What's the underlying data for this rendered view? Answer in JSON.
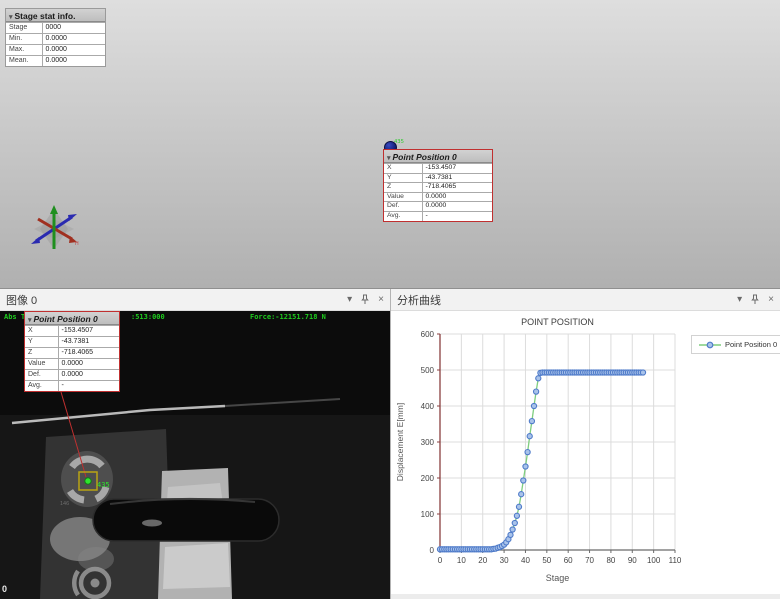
{
  "colors": {
    "annotation_border": "#c03030",
    "camera_text_green": "#1ecb1e",
    "line_green": "#7fce7f",
    "marker_blue_stroke": "#4f7bc9",
    "marker_blue_fill": "#a9c3ea",
    "axis_left_maroon": "#8a4040",
    "axis_bottom_gray": "#6a6a6a"
  },
  "viewport": {
    "stage_stat": {
      "title": "Stage stat info.",
      "collapse_icon": "▾",
      "rows": [
        {
          "label": "Stage",
          "value": "0000"
        },
        {
          "label": "Min.",
          "value": "0.0000"
        },
        {
          "label": "Max.",
          "value": "0.0000"
        },
        {
          "label": "Mean.",
          "value": "0.0000"
        }
      ]
    },
    "sphere_label": "435"
  },
  "point_position": {
    "title": "Point Position 0",
    "collapse_icon": "▾",
    "rows": [
      {
        "label": "X",
        "value": "-153.4507"
      },
      {
        "label": "Y",
        "value": "-43.7381"
      },
      {
        "label": "Z",
        "value": "-718.4065"
      },
      {
        "label": "Value",
        "value": "0.0000"
      },
      {
        "label": "Def.",
        "value": "0.0000"
      },
      {
        "label": "Avg.",
        "value": "-"
      }
    ]
  },
  "image_panel": {
    "title": "图像 0",
    "menu_icon": "▾",
    "close_icon": "×",
    "overlay": {
      "left_text": "Abs T",
      "time_text": ":513:000",
      "force_text": "Force:-12151.718 N",
      "marker_label": "435",
      "small_label": "146",
      "frame_counter": "0"
    }
  },
  "chart_panel": {
    "title": "分析曲线",
    "menu_icon": "▾",
    "close_icon": "×"
  },
  "chart_data": {
    "type": "line",
    "title": "POINT POSITION",
    "xlabel": "Stage",
    "ylabel": "Displacement E[mm]",
    "xlim": [
      0,
      110
    ],
    "ylim": [
      0,
      600
    ],
    "xticks": [
      0,
      10,
      20,
      30,
      40,
      50,
      60,
      70,
      80,
      90,
      100,
      110
    ],
    "yticks": [
      0,
      100,
      200,
      300,
      400,
      500,
      600
    ],
    "grid": true,
    "legend_position": "right",
    "series": [
      {
        "name": "Point Position 0",
        "x": [
          0,
          1,
          2,
          3,
          4,
          5,
          6,
          7,
          8,
          9,
          10,
          11,
          12,
          13,
          14,
          15,
          16,
          17,
          18,
          19,
          20,
          21,
          22,
          23,
          24,
          25,
          26,
          27,
          28,
          29,
          30,
          31,
          32,
          33,
          34,
          35,
          36,
          37,
          38,
          39,
          40,
          41,
          42,
          43,
          44,
          45,
          46,
          47,
          48,
          49,
          50,
          51,
          52,
          53,
          54,
          55,
          56,
          57,
          58,
          59,
          60,
          61,
          62,
          63,
          64,
          65,
          66,
          67,
          68,
          69,
          70,
          71,
          72,
          73,
          74,
          75,
          76,
          77,
          78,
          79,
          80,
          81,
          82,
          83,
          84,
          85,
          86,
          87,
          88,
          89,
          90,
          91,
          92,
          93,
          94,
          95
        ],
        "y": [
          2,
          2,
          2,
          2,
          2,
          2,
          2,
          2,
          2,
          2,
          2,
          2,
          2,
          2,
          2,
          2,
          2,
          2,
          2,
          2,
          2,
          2,
          2,
          2,
          2,
          3,
          4,
          6,
          8,
          11,
          15,
          21,
          30,
          42,
          57,
          75,
          95,
          120,
          155,
          193,
          232,
          272,
          316,
          358,
          400,
          440,
          477,
          492,
          493,
          493,
          493,
          493,
          493,
          493,
          493,
          493,
          493,
          493,
          493,
          493,
          493,
          493,
          493,
          493,
          493,
          493,
          493,
          493,
          493,
          493,
          493,
          493,
          493,
          493,
          493,
          493,
          493,
          493,
          493,
          493,
          493,
          493,
          493,
          493,
          493,
          493,
          493,
          493,
          493,
          493,
          493,
          493,
          493,
          493,
          493,
          493
        ]
      }
    ]
  }
}
